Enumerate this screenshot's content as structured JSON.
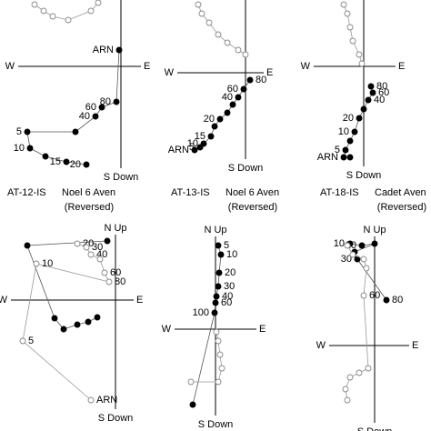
{
  "chart_data": [
    {
      "type": "zijderveld",
      "caption": {
        "id": "AT-12-IS",
        "site": "Noel 6 Aven",
        "note": "(Reversed)"
      },
      "axis_labels": {
        "left": "W",
        "right": "E",
        "bottom": "S Down"
      },
      "xlim": [
        -113,
        22
      ],
      "ylim": [
        -112,
        73
      ],
      "series": [
        {
          "marker": "filled",
          "color": "#000000",
          "x": [
            -2,
            -5,
            -21,
            -28,
            -50,
            -103,
            -100,
            -83,
            -60,
            -38
          ],
          "y": [
            18,
            -39,
            -45,
            -55,
            -72,
            -72,
            -90,
            -99,
            -105,
            -108
          ],
          "labels": [
            "ARN",
            "80",
            "60",
            "40",
            null,
            "5",
            "10",
            null,
            "15",
            "20"
          ]
        },
        {
          "marker": "open",
          "color": "#888888",
          "x": [
            -95,
            -85,
            -75,
            -58,
            -33,
            -25
          ],
          "y": [
            68,
            61,
            55,
            51,
            61,
            70
          ]
        }
      ]
    },
    {
      "type": "zijderveld",
      "caption": {
        "id": "AT-13-IS",
        "site": "Noel 6 Aven",
        "note": "(Reversed)"
      },
      "axis_labels": {
        "left": "W",
        "right": "E",
        "bottom": "S Down"
      },
      "xlim": [
        -75,
        20
      ],
      "ylim": [
        -95,
        80
      ],
      "series": [
        {
          "marker": "filled",
          "color": "#000000",
          "x": [
            5,
            -2,
            -8,
            -14,
            -20,
            -28,
            -34,
            -38,
            -46,
            -50,
            -56
          ],
          "y": [
            -8,
            -18,
            -27,
            -35,
            -44,
            -51,
            -59,
            -70,
            -78,
            -82,
            -85
          ],
          "labels": [
            "80",
            "60",
            "40",
            null,
            null,
            "20",
            null,
            "15",
            "10",
            "5",
            "ARN"
          ]
        },
        {
          "marker": "open",
          "color": "#888888",
          "x": [
            -52,
            -48,
            -40,
            -30,
            -20,
            -8,
            0
          ],
          "y": [
            75,
            65,
            55,
            42,
            33,
            25,
            20
          ]
        }
      ]
    },
    {
      "type": "zijderveld",
      "caption": {
        "id": "AT-18-IS",
        "site": "Cadet Aven",
        "note": "(Reversed)"
      },
      "axis_labels": {
        "left": "W",
        "right": "E",
        "bottom": "S Down"
      },
      "xlim": [
        -55,
        35
      ],
      "ylim": [
        -110,
        73
      ],
      "series": [
        {
          "marker": "filled",
          "color": "#000000",
          "x": [
            8,
            10,
            5,
            0,
            -5,
            -10,
            -15,
            -20,
            -22,
            -15
          ],
          "y": [
            -22,
            -29,
            -37,
            -47,
            -57,
            -72,
            -82,
            -92,
            -100,
            -100
          ],
          "labels": [
            "80",
            "60",
            "40",
            null,
            "20",
            "10",
            null,
            "5",
            "ARN",
            null
          ]
        },
        {
          "marker": "open",
          "color": "#888888",
          "x": [
            -22,
            -18,
            -15,
            -12,
            -5,
            -2
          ],
          "y": [
            68,
            58,
            43,
            28,
            13,
            3
          ]
        }
      ]
    },
    {
      "type": "zijderveld",
      "axis_labels": {
        "left": "W",
        "right": "E",
        "bottom": "S Down",
        "top": "N Up"
      },
      "xlim": [
        -115,
        20
      ],
      "ylim": [
        -120,
        72
      ],
      "series": [
        {
          "marker": "filled",
          "color": "#000000",
          "x": [
            -9,
            -97,
            -67,
            -57,
            -42,
            -30,
            -20
          ],
          "y": [
            65,
            60,
            -20,
            -32,
            -27,
            -24,
            -19
          ]
        },
        {
          "marker": "open",
          "color": "#888888",
          "x": [
            -42,
            -32,
            -27,
            -17,
            -12,
            -7,
            -87,
            -102,
            -27
          ],
          "y": [
            62,
            58,
            50,
            45,
            30,
            20,
            40,
            -45,
            -110
          ],
          "labels": [
            "20",
            "30",
            "40",
            null,
            "60",
            "80",
            "10",
            "5",
            "ARN"
          ]
        }
      ]
    },
    {
      "type": "zijderveld",
      "axis_labels": {
        "left": "W",
        "right": "E",
        "bottom": "S Down",
        "top": "N Up"
      },
      "xlim": [
        -45,
        45
      ],
      "ylim": [
        -95,
        102
      ],
      "series": [
        {
          "marker": "filled",
          "color": "#000000",
          "x": [
            3,
            6,
            4,
            3,
            1,
            0,
            -1,
            -25
          ],
          "y": [
            92,
            82,
            62,
            47,
            36,
            29,
            18,
            -83
          ],
          "labels": [
            "5",
            "10",
            "20",
            "30",
            "40",
            "60",
            "100",
            null
          ]
        },
        {
          "marker": "open",
          "color": "#888888",
          "x": [
            1,
            3,
            5,
            7,
            3,
            -27
          ],
          "y": [
            -3,
            -13,
            -28,
            -43,
            -58,
            -58
          ]
        }
      ]
    },
    {
      "type": "zijderveld",
      "axis_labels": {
        "left": "W",
        "right": "E",
        "bottom": "S Down",
        "top": "N Up"
      },
      "xlim": [
        -50,
        38
      ],
      "ylim": [
        -85,
        120
      ],
      "series": [
        {
          "marker": "filled",
          "color": "#000000",
          "x": [
            -27,
            -14,
            0,
            -22,
            -19,
            13
          ],
          "y": [
            112,
            110,
            112,
            103,
            95,
            50
          ],
          "labels": [
            "10",
            "20",
            null,
            null,
            "30",
            "80"
          ]
        },
        {
          "marker": "open",
          "color": "#888888",
          "x": [
            -30,
            -24,
            -12,
            -9,
            -12,
            -7,
            -17,
            -27,
            -32,
            -30
          ],
          "y": [
            110,
            100,
            95,
            85,
            55,
            -25,
            -30,
            -35,
            -48,
            -60
          ],
          "labels": [
            null,
            null,
            null,
            null,
            "60",
            null,
            null,
            null,
            null,
            null
          ]
        }
      ]
    }
  ]
}
